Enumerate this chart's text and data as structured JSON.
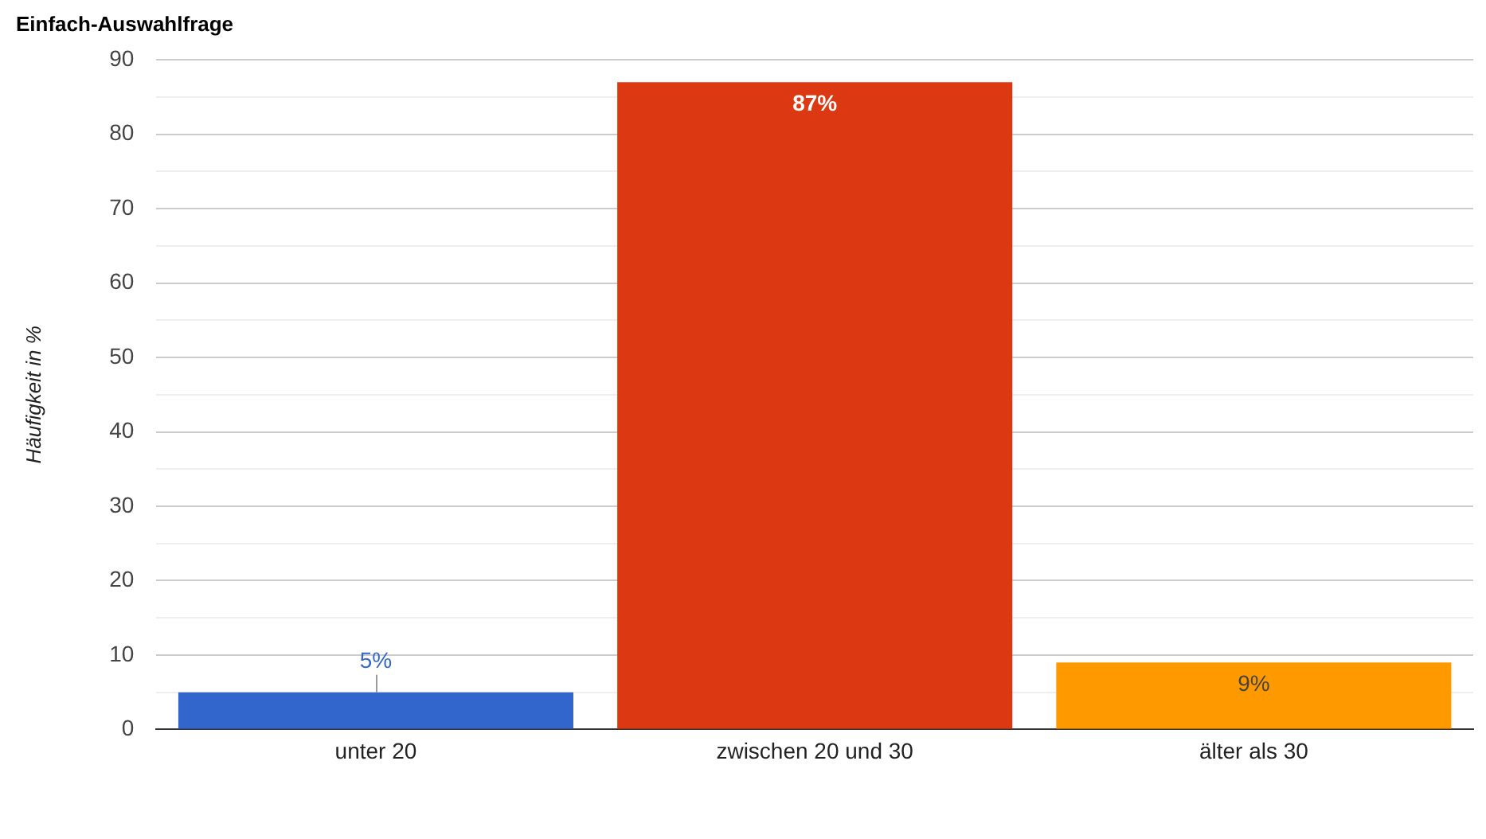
{
  "chart_data": {
    "type": "bar",
    "title": "Einfach-Auswahlfrage",
    "ylabel": "Häufigkeit in %",
    "categories": [
      "unter 20",
      "zwischen 20 und 30",
      "älter als 30"
    ],
    "values": [
      5,
      87,
      9
    ],
    "colors": [
      "#3366cc",
      "#dc3912",
      "#ff9900"
    ],
    "value_labels": [
      "5%",
      "87%",
      "9%"
    ],
    "ylim": [
      0,
      90
    ],
    "yticks": [
      0,
      {
        "value": 5,
        "label": null
      },
      10,
      {
        "value": 15,
        "label": null
      },
      20,
      {
        "value": 25,
        "label": null
      },
      30,
      {
        "value": 35,
        "label": null
      },
      40,
      {
        "value": 45,
        "label": null
      },
      50,
      {
        "value": 55,
        "label": null
      },
      60,
      {
        "value": 65,
        "label": null
      },
      70,
      {
        "value": 75,
        "label": null
      },
      80,
      {
        "value": 85,
        "label": null
      },
      90
    ],
    "grid": "y"
  }
}
